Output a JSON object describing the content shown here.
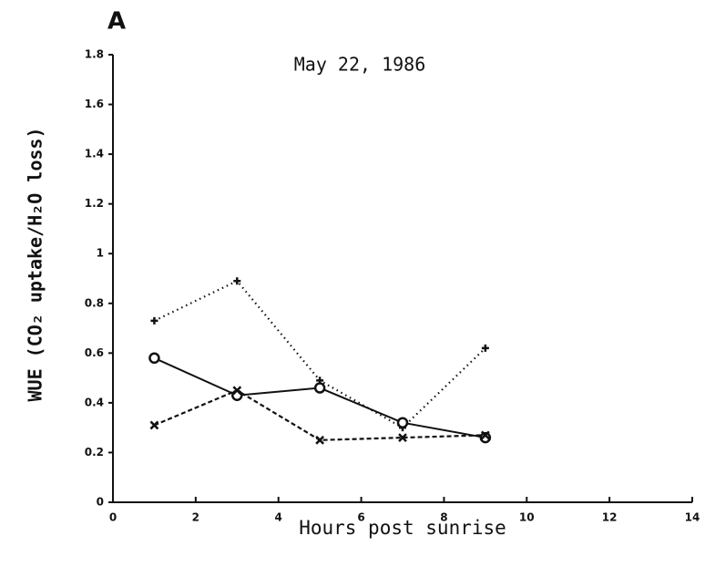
{
  "chart_data": {
    "type": "line",
    "title": "A",
    "annotation": "May 22, 1986",
    "x_label": "Hours post sunrise",
    "y_label": "WUE (CO₂ uptake/H₂O loss)",
    "xlim": [
      0,
      14
    ],
    "xticks": [
      0,
      2,
      4,
      6,
      8,
      10,
      12,
      14
    ],
    "ylim": [
      0,
      1.8
    ],
    "yticks": [
      0,
      0.2,
      0.4,
      0.6,
      0.8,
      1,
      1.2,
      1.4,
      1.6,
      1.8
    ],
    "color": "#111111",
    "series": [
      {
        "marker": "plus",
        "linestyle": "dotted",
        "x": [
          1,
          3,
          5,
          7,
          9
        ],
        "values": [
          0.73,
          0.89,
          0.49,
          0.3,
          0.62
        ]
      },
      {
        "marker": "circle",
        "linestyle": "solid",
        "x": [
          1,
          3,
          5,
          7,
          9
        ],
        "values": [
          0.58,
          0.43,
          0.46,
          0.32,
          0.26
        ]
      },
      {
        "marker": "cross",
        "linestyle": "dashed",
        "x": [
          1,
          3,
          5,
          7,
          9
        ],
        "values": [
          0.31,
          0.45,
          0.25,
          0.26,
          0.27
        ]
      }
    ]
  }
}
